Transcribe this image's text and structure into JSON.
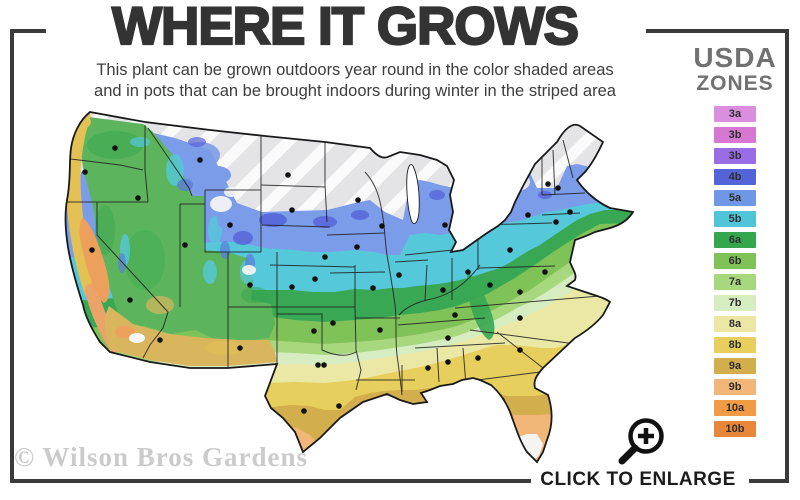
{
  "header": {
    "title": "WHERE IT GROWS",
    "subtitle_line1": "This plant can be grown outdoors year round in the color shaded areas",
    "subtitle_line2": "and in pots that can be brought indoors during winter in the striped area"
  },
  "legend": {
    "title_line1": "USDA",
    "title_line2": "ZONES",
    "zones": [
      {
        "label": "3a",
        "color": "#dc8ede"
      },
      {
        "label": "3b",
        "color": "#d678d2"
      },
      {
        "label": "3b",
        "color": "#9a6ce6"
      },
      {
        "label": "4b",
        "color": "#5463d8"
      },
      {
        "label": "5a",
        "color": "#6f97e6"
      },
      {
        "label": "5b",
        "color": "#50c5da"
      },
      {
        "label": "6a",
        "color": "#33a64e"
      },
      {
        "label": "6b",
        "color": "#7fc257"
      },
      {
        "label": "7a",
        "color": "#a8d87e"
      },
      {
        "label": "7b",
        "color": "#d6ecc1"
      },
      {
        "label": "8a",
        "color": "#ebe8a5"
      },
      {
        "label": "8b",
        "color": "#e6cf5c"
      },
      {
        "label": "9a",
        "color": "#d3ae4d"
      },
      {
        "label": "9b",
        "color": "#f2b678"
      },
      {
        "label": "10a",
        "color": "#f29b45"
      },
      {
        "label": "10b",
        "color": "#e8873a"
      }
    ]
  },
  "footer": {
    "watermark": "© Wilson Bros Gardens",
    "enlarge_label": "CLICK TO ENLARGE"
  }
}
